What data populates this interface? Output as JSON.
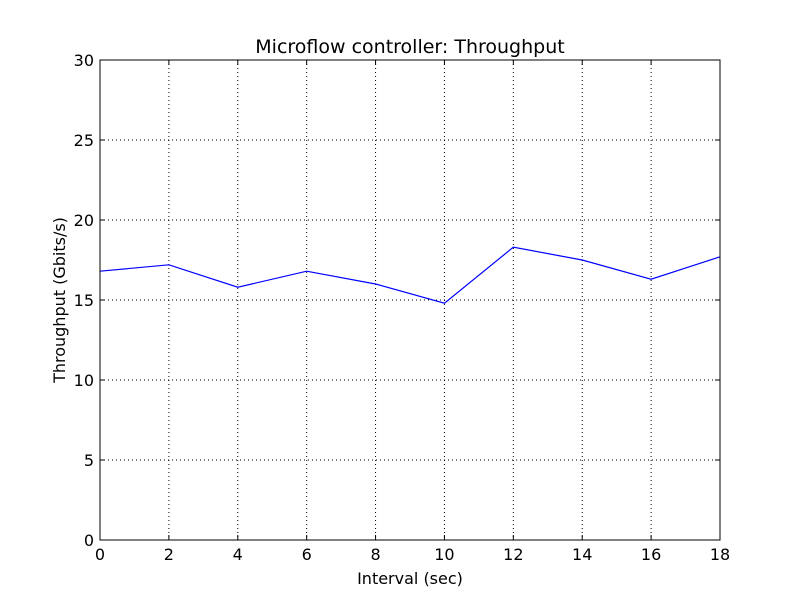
{
  "chart_data": {
    "type": "line",
    "title": "Microflow controller: Throughput",
    "xlabel": "Interval (sec)",
    "ylabel": "Throughput (Gbits/s)",
    "xlim": [
      0,
      18
    ],
    "ylim": [
      0,
      30
    ],
    "x_ticks": [
      0,
      2,
      4,
      6,
      8,
      10,
      12,
      14,
      16,
      18
    ],
    "y_ticks": [
      0,
      5,
      10,
      15,
      20,
      25,
      30
    ],
    "grid": true,
    "series": [
      {
        "color": "#0000ff",
        "x": [
          0,
          2,
          4,
          6,
          8,
          10,
          12,
          14,
          16,
          18
        ],
        "y": [
          16.8,
          17.2,
          15.8,
          16.8,
          16.0,
          14.8,
          18.3,
          17.5,
          16.3,
          17.7
        ]
      }
    ]
  }
}
